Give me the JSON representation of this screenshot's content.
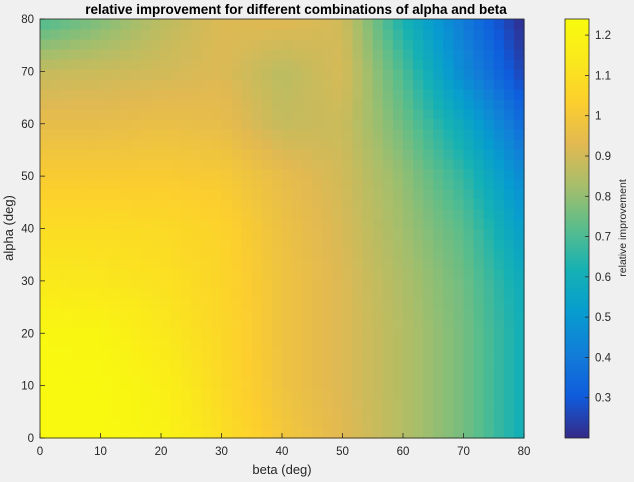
{
  "chart_data": {
    "type": "heatmap",
    "title": "relative improvement for different combinations of alpha and beta",
    "xlabel": "beta (deg)",
    "ylabel": "alpha (deg)",
    "xlim": [
      0,
      80
    ],
    "ylim": [
      0,
      80
    ],
    "xticks": [
      "0",
      "10",
      "20",
      "30",
      "40",
      "50",
      "60",
      "70",
      "80"
    ],
    "yticks": [
      "0",
      "10",
      "20",
      "30",
      "40",
      "50",
      "60",
      "70",
      "80"
    ],
    "colormap": "parula",
    "colorbar": {
      "label": "relative improvement",
      "range": [
        0.2,
        1.24
      ],
      "ticks": [
        "0.3",
        "0.4",
        "0.5",
        "0.6",
        "0.7",
        "0.8",
        "0.9",
        "1",
        "1.1",
        "1.2"
      ]
    },
    "grid": false,
    "x": [
      0,
      10,
      20,
      30,
      40,
      50,
      60,
      70,
      80
    ],
    "y": [
      0,
      10,
      20,
      30,
      40,
      50,
      60,
      70,
      80
    ],
    "z": [
      [
        1.23,
        1.23,
        1.2,
        1.1,
        1.0,
        0.93,
        0.85,
        0.76,
        0.6
      ],
      [
        1.23,
        1.23,
        1.18,
        1.08,
        0.98,
        0.92,
        0.85,
        0.76,
        0.6
      ],
      [
        1.22,
        1.21,
        1.14,
        1.07,
        0.98,
        0.92,
        0.85,
        0.76,
        0.6
      ],
      [
        1.14,
        1.13,
        1.11,
        1.06,
        0.98,
        0.92,
        0.84,
        0.75,
        0.58
      ],
      [
        1.09,
        1.09,
        1.08,
        1.05,
        0.97,
        0.91,
        0.82,
        0.72,
        0.52
      ],
      [
        1.02,
        1.02,
        1.02,
        1.01,
        0.95,
        0.9,
        0.8,
        0.66,
        0.45
      ],
      [
        0.95,
        0.95,
        0.96,
        0.95,
        0.88,
        0.89,
        0.75,
        0.57,
        0.35
      ],
      [
        0.88,
        0.89,
        0.9,
        0.92,
        0.86,
        0.91,
        0.7,
        0.45,
        0.25
      ],
      [
        0.7,
        0.77,
        0.86,
        0.92,
        0.93,
        0.9,
        0.62,
        0.4,
        0.2
      ]
    ]
  }
}
